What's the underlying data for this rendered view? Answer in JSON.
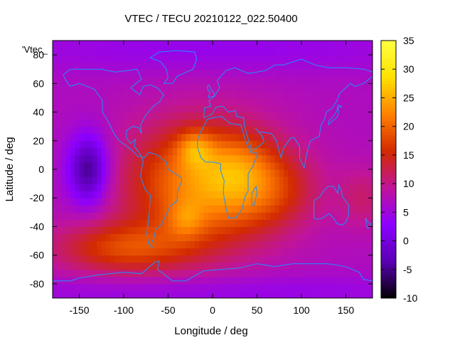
{
  "chart_data": {
    "type": "heatmap",
    "title": "VTEC / TECU 20210122_022.50400",
    "xlabel": "Longitude / deg",
    "ylabel": "Latitude / deg",
    "series_key": "'Vtec_",
    "xlim": [
      -180,
      180
    ],
    "ylim": [
      -90,
      90
    ],
    "x_ticks": [
      -150,
      -100,
      -50,
      0,
      50,
      100,
      150
    ],
    "y_ticks": [
      -80,
      -60,
      -40,
      -20,
      0,
      20,
      40,
      60,
      80
    ],
    "colorbar": {
      "min": -10,
      "max": 35,
      "ticks": [
        -10,
        -5,
        0,
        5,
        10,
        15,
        20,
        25,
        30,
        35
      ],
      "palette": [
        "#000000",
        "#5a00b4",
        "#8c00ff",
        "#c0149a",
        "#d22a00",
        "#ff8000",
        "#ffe000",
        "#ffff40"
      ]
    },
    "grid": {
      "lon_step": 5,
      "lat_step": 5
    },
    "features": [
      {
        "label": "background",
        "value": 7
      },
      {
        "label": "low_pacific",
        "lon": -140,
        "lat": 0,
        "value": -8
      },
      {
        "label": "equatorial_peak_africa",
        "lon": -20,
        "lat": 15,
        "value": 30
      },
      {
        "label": "south_atlantic_peak",
        "lon": -30,
        "lat": -35,
        "value": 31
      },
      {
        "label": "southern_band_peak",
        "lon": -100,
        "lat": -55,
        "value": 19
      }
    ],
    "coastline_color": "#1e90ff"
  }
}
